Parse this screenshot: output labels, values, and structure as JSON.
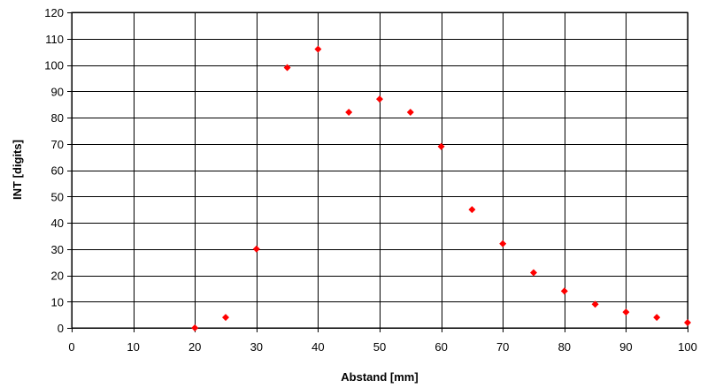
{
  "chart_data": {
    "type": "scatter",
    "title": "",
    "xlabel": "Abstand [mm]",
    "ylabel": "INT [digits]",
    "xlim": [
      0,
      100
    ],
    "ylim": [
      0,
      120
    ],
    "x_ticks": [
      0,
      10,
      20,
      30,
      40,
      50,
      60,
      70,
      80,
      90,
      100
    ],
    "y_ticks": [
      0,
      10,
      20,
      30,
      40,
      50,
      60,
      70,
      80,
      90,
      100,
      110,
      120
    ],
    "grid": true,
    "legend": false,
    "marker": "diamond",
    "marker_color": "#ff0000",
    "series": [
      {
        "points": [
          {
            "x": 20,
            "y": 0
          },
          {
            "x": 25,
            "y": 4
          },
          {
            "x": 30,
            "y": 30
          },
          {
            "x": 35,
            "y": 99
          },
          {
            "x": 40,
            "y": 106
          },
          {
            "x": 45,
            "y": 82
          },
          {
            "x": 50,
            "y": 87
          },
          {
            "x": 55,
            "y": 82
          },
          {
            "x": 60,
            "y": 69
          },
          {
            "x": 65,
            "y": 45
          },
          {
            "x": 70,
            "y": 32
          },
          {
            "x": 75,
            "y": 21
          },
          {
            "x": 80,
            "y": 14
          },
          {
            "x": 85,
            "y": 9
          },
          {
            "x": 90,
            "y": 6
          },
          {
            "x": 95,
            "y": 4
          },
          {
            "x": 100,
            "y": 2
          }
        ]
      }
    ]
  }
}
